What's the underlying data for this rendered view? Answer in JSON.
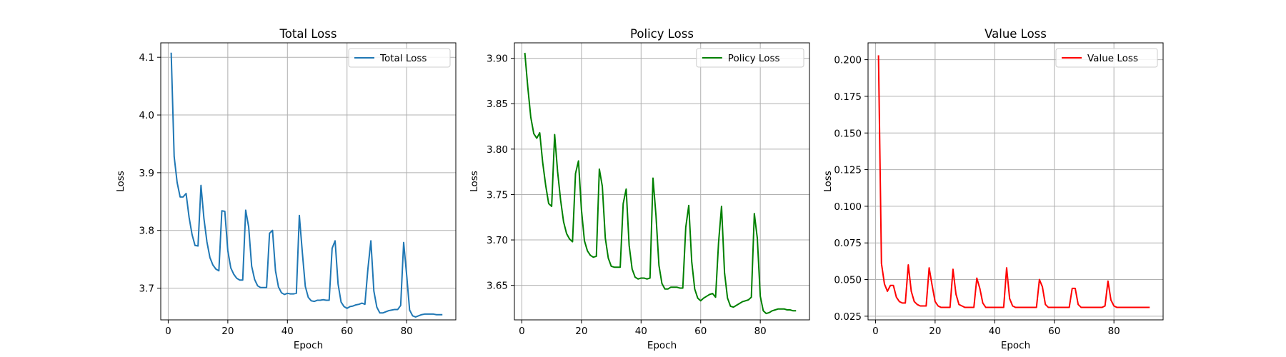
{
  "figure": {
    "background": "#ffffff",
    "grid_color": "#b0b0b0",
    "axis_color": "#000000"
  },
  "chart_data": [
    {
      "type": "line",
      "title": "Total Loss",
      "xlabel": "Epoch",
      "ylabel": "Loss",
      "xlim": [
        -2.5,
        96.5
      ],
      "ylim": [
        3.645,
        4.125
      ],
      "xticks": [
        0,
        20,
        40,
        60,
        80
      ],
      "yticks": [
        3.7,
        3.8,
        3.9,
        4.0,
        4.1
      ],
      "ytick_labels": [
        "3.7",
        "3.8",
        "3.9",
        "4.0",
        "4.1"
      ],
      "grid": true,
      "legend": "top-right",
      "series": [
        {
          "name": "Total Loss",
          "color": "#1f77b4",
          "x": [
            1,
            2,
            3,
            4,
            5,
            6,
            7,
            8,
            9,
            10,
            11,
            12,
            13,
            14,
            15,
            16,
            17,
            18,
            19,
            20,
            21,
            22,
            23,
            24,
            25,
            26,
            27,
            28,
            29,
            30,
            31,
            32,
            33,
            34,
            35,
            36,
            37,
            38,
            39,
            40,
            41,
            42,
            43,
            44,
            45,
            46,
            47,
            48,
            49,
            50,
            51,
            52,
            53,
            54,
            55,
            56,
            57,
            58,
            59,
            60,
            61,
            62,
            63,
            64,
            65,
            66,
            67,
            68,
            69,
            70,
            71,
            72,
            73,
            74,
            75,
            76,
            77,
            78,
            79,
            80,
            81,
            82,
            83,
            84,
            85,
            86,
            87,
            88,
            89,
            90,
            91,
            92
          ],
          "values": [
            4.108,
            3.928,
            3.883,
            3.858,
            3.858,
            3.864,
            3.823,
            3.793,
            3.774,
            3.773,
            3.878,
            3.82,
            3.78,
            3.753,
            3.74,
            3.733,
            3.73,
            3.834,
            3.833,
            3.765,
            3.735,
            3.724,
            3.717,
            3.714,
            3.714,
            3.835,
            3.806,
            3.738,
            3.715,
            3.704,
            3.701,
            3.701,
            3.701,
            3.795,
            3.8,
            3.73,
            3.702,
            3.692,
            3.689,
            3.691,
            3.69,
            3.69,
            3.691,
            3.826,
            3.762,
            3.703,
            3.684,
            3.678,
            3.677,
            3.679,
            3.679,
            3.68,
            3.679,
            3.679,
            3.769,
            3.782,
            3.707,
            3.676,
            3.668,
            3.665,
            3.668,
            3.669,
            3.671,
            3.672,
            3.674,
            3.672,
            3.733,
            3.782,
            3.695,
            3.667,
            3.657,
            3.657,
            3.659,
            3.661,
            3.662,
            3.663,
            3.663,
            3.67,
            3.779,
            3.723,
            3.662,
            3.652,
            3.65,
            3.652,
            3.654,
            3.655,
            3.655,
            3.655,
            3.655,
            3.654,
            3.654,
            3.654
          ]
        }
      ]
    },
    {
      "type": "line",
      "title": "Policy Loss",
      "xlabel": "Epoch",
      "ylabel": "Loss",
      "xlim": [
        -2.5,
        96.5
      ],
      "ylim": [
        3.612,
        3.917
      ],
      "xticks": [
        0,
        20,
        40,
        60,
        80
      ],
      "yticks": [
        3.65,
        3.7,
        3.75,
        3.8,
        3.85,
        3.9
      ],
      "ytick_labels": [
        "3.65",
        "3.70",
        "3.75",
        "3.80",
        "3.85",
        "3.90"
      ],
      "grid": true,
      "legend": "top-right",
      "series": [
        {
          "name": "Policy Loss",
          "color": "#008000",
          "x": [
            1,
            2,
            3,
            4,
            5,
            6,
            7,
            8,
            9,
            10,
            11,
            12,
            13,
            14,
            15,
            16,
            17,
            18,
            19,
            20,
            21,
            22,
            23,
            24,
            25,
            26,
            27,
            28,
            29,
            30,
            31,
            32,
            33,
            34,
            35,
            36,
            37,
            38,
            39,
            40,
            41,
            42,
            43,
            44,
            45,
            46,
            47,
            48,
            49,
            50,
            51,
            52,
            53,
            54,
            55,
            56,
            57,
            58,
            59,
            60,
            61,
            62,
            63,
            64,
            65,
            66,
            67,
            68,
            69,
            70,
            71,
            72,
            73,
            74,
            75,
            76,
            77,
            78,
            79,
            80,
            81,
            82,
            83,
            84,
            85,
            86,
            87,
            88,
            89,
            90,
            91,
            92
          ],
          "values": [
            3.906,
            3.868,
            3.835,
            3.817,
            3.812,
            3.818,
            3.785,
            3.76,
            3.74,
            3.737,
            3.816,
            3.775,
            3.744,
            3.72,
            3.707,
            3.701,
            3.698,
            3.773,
            3.787,
            3.733,
            3.699,
            3.688,
            3.683,
            3.681,
            3.682,
            3.778,
            3.759,
            3.702,
            3.68,
            3.671,
            3.67,
            3.67,
            3.67,
            3.74,
            3.756,
            3.694,
            3.668,
            3.659,
            3.657,
            3.658,
            3.658,
            3.657,
            3.658,
            3.768,
            3.727,
            3.672,
            3.652,
            3.646,
            3.646,
            3.648,
            3.648,
            3.648,
            3.647,
            3.647,
            3.714,
            3.738,
            3.676,
            3.646,
            3.636,
            3.633,
            3.636,
            3.638,
            3.64,
            3.641,
            3.637,
            3.697,
            3.737,
            3.664,
            3.636,
            3.627,
            3.626,
            3.628,
            3.63,
            3.632,
            3.633,
            3.634,
            3.637,
            3.729,
            3.702,
            3.638,
            3.622,
            3.619,
            3.62,
            3.622,
            3.623,
            3.624,
            3.624,
            3.624,
            3.623,
            3.623,
            3.622,
            3.622
          ]
        }
      ]
    },
    {
      "type": "line",
      "title": "Value Loss",
      "xlabel": "Epoch",
      "ylabel": "Loss",
      "xlim": [
        -2.5,
        96.5
      ],
      "ylim": [
        0.0225,
        0.2115
      ],
      "xticks": [
        0,
        20,
        40,
        60,
        80
      ],
      "yticks": [
        0.025,
        0.05,
        0.075,
        0.1,
        0.125,
        0.15,
        0.175,
        0.2
      ],
      "ytick_labels": [
        "0.025",
        "0.050",
        "0.075",
        "0.100",
        "0.125",
        "0.150",
        "0.175",
        "0.200"
      ],
      "grid": true,
      "legend": "top-right",
      "series": [
        {
          "name": "Value Loss",
          "color": "#ff0000",
          "x": [
            1,
            2,
            3,
            4,
            5,
            6,
            7,
            8,
            9,
            10,
            11,
            12,
            13,
            14,
            15,
            16,
            17,
            18,
            19,
            20,
            21,
            22,
            23,
            24,
            25,
            26,
            27,
            28,
            29,
            30,
            31,
            32,
            33,
            34,
            35,
            36,
            37,
            38,
            39,
            40,
            41,
            42,
            43,
            44,
            45,
            46,
            47,
            48,
            49,
            50,
            51,
            52,
            53,
            54,
            55,
            56,
            57,
            58,
            59,
            60,
            61,
            62,
            63,
            64,
            65,
            66,
            67,
            68,
            69,
            70,
            71,
            72,
            73,
            74,
            75,
            76,
            77,
            78,
            79,
            80,
            81,
            82,
            83,
            84,
            85,
            86,
            87,
            88,
            89,
            90,
            91,
            92
          ],
          "values": [
            0.203,
            0.061,
            0.047,
            0.042,
            0.046,
            0.046,
            0.038,
            0.035,
            0.034,
            0.034,
            0.06,
            0.042,
            0.035,
            0.033,
            0.032,
            0.032,
            0.032,
            0.058,
            0.046,
            0.035,
            0.032,
            0.031,
            0.031,
            0.031,
            0.031,
            0.057,
            0.04,
            0.033,
            0.032,
            0.031,
            0.031,
            0.031,
            0.031,
            0.051,
            0.044,
            0.034,
            0.031,
            0.031,
            0.031,
            0.031,
            0.031,
            0.031,
            0.031,
            0.058,
            0.037,
            0.032,
            0.031,
            0.031,
            0.031,
            0.031,
            0.031,
            0.031,
            0.031,
            0.031,
            0.05,
            0.045,
            0.033,
            0.031,
            0.031,
            0.031,
            0.031,
            0.031,
            0.031,
            0.031,
            0.031,
            0.044,
            0.044,
            0.033,
            0.031,
            0.031,
            0.031,
            0.031,
            0.031,
            0.031,
            0.031,
            0.031,
            0.032,
            0.049,
            0.036,
            0.032,
            0.031,
            0.031,
            0.031,
            0.031,
            0.031,
            0.031,
            0.031,
            0.031,
            0.031,
            0.031,
            0.031,
            0.031
          ]
        }
      ]
    }
  ]
}
